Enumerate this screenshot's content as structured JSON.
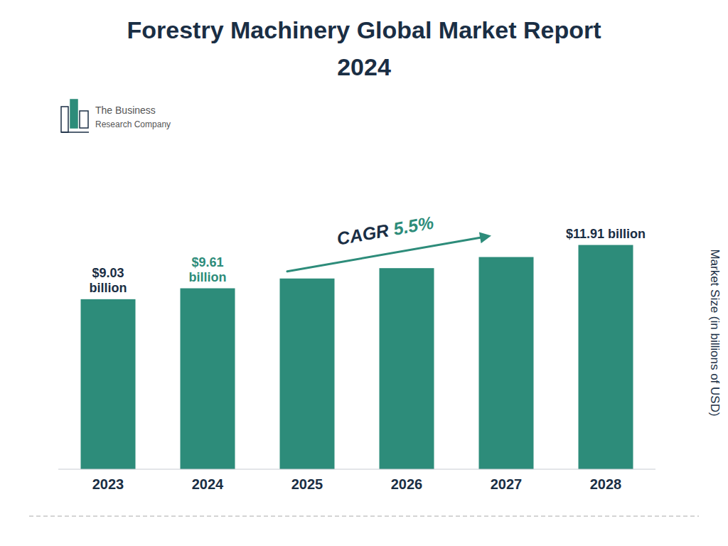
{
  "chart_data": {
    "type": "bar",
    "title": "Forestry Machinery Global Market Report",
    "subtitle": "2024",
    "ylabel": "Market Size (in billions of USD)",
    "categories": [
      "2023",
      "2024",
      "2025",
      "2026",
      "2027",
      "2028"
    ],
    "values": [
      9.03,
      9.61,
      10.13,
      10.68,
      11.27,
      11.91
    ],
    "color": "#2d8c7a",
    "ylim": [
      0,
      14.5
    ],
    "grid": false,
    "tick_labels": "x",
    "annotations": [
      {
        "text": "$9.03\nbillion",
        "x": "2023",
        "color": "#1a2e44"
      },
      {
        "text": "$9.61\nbillion",
        "x": "2024",
        "color": "#2d8c7a"
      },
      {
        "text": "$11.91 billion",
        "x": "2028",
        "color": "#1a2e44"
      },
      {
        "text": "CAGR ",
        "x": [
          "2025",
          "2027"
        ],
        "color": "#1a2e44"
      },
      {
        "text": "5.5%",
        "x": [
          "2025",
          "2027"
        ],
        "color": "#2d8c7a"
      },
      {
        "text": "The Business",
        "color": "#555555"
      },
      {
        "text": "Research Company",
        "color": "#555555"
      }
    ]
  }
}
